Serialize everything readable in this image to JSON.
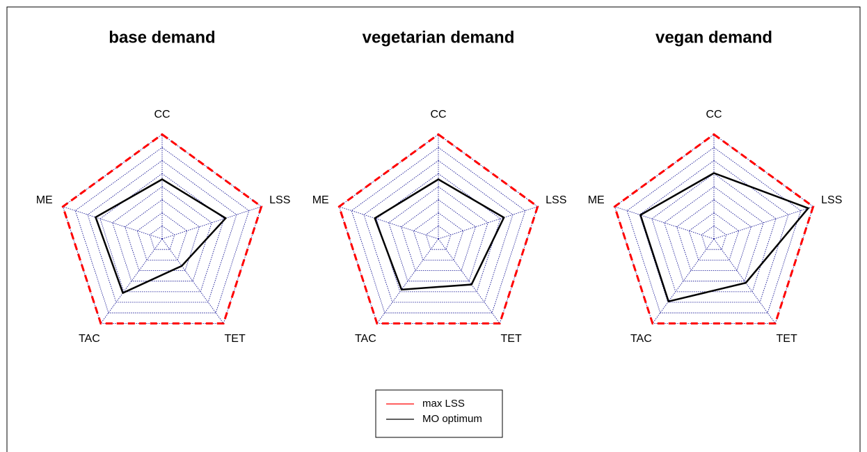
{
  "chart_data": [
    {
      "type": "radar",
      "title": "base demand",
      "categories": [
        "CC",
        "LSS",
        "TET",
        "TAC",
        "ME"
      ],
      "rlim": [
        0,
        1
      ],
      "grid_levels": 8,
      "series": [
        {
          "name": "max LSS",
          "color": "#ff0000",
          "values": [
            1,
            1,
            1,
            1,
            1
          ]
        },
        {
          "name": "MO optimum",
          "color": "#000000",
          "values": [
            0.57,
            0.64,
            0.32,
            0.64,
            0.67
          ]
        }
      ]
    },
    {
      "type": "radar",
      "title": "vegetarian demand",
      "categories": [
        "CC",
        "LSS",
        "TET",
        "TAC",
        "ME"
      ],
      "rlim": [
        0,
        1
      ],
      "grid_levels": 8,
      "series": [
        {
          "name": "max LSS",
          "color": "#ff0000",
          "values": [
            1,
            1,
            1,
            1,
            1
          ]
        },
        {
          "name": "MO optimum",
          "color": "#000000",
          "values": [
            0.57,
            0.66,
            0.54,
            0.6,
            0.64
          ]
        }
      ]
    },
    {
      "type": "radar",
      "title": "vegan demand",
      "categories": [
        "CC",
        "LSS",
        "TET",
        "TAC",
        "ME"
      ],
      "rlim": [
        0,
        1
      ],
      "grid_levels": 8,
      "series": [
        {
          "name": "max LSS",
          "color": "#ff0000",
          "values": [
            1,
            1,
            1,
            1,
            1
          ]
        },
        {
          "name": "MO optimum",
          "color": "#000000",
          "values": [
            0.63,
            0.95,
            0.52,
            0.74,
            0.74
          ]
        }
      ]
    }
  ]
}
